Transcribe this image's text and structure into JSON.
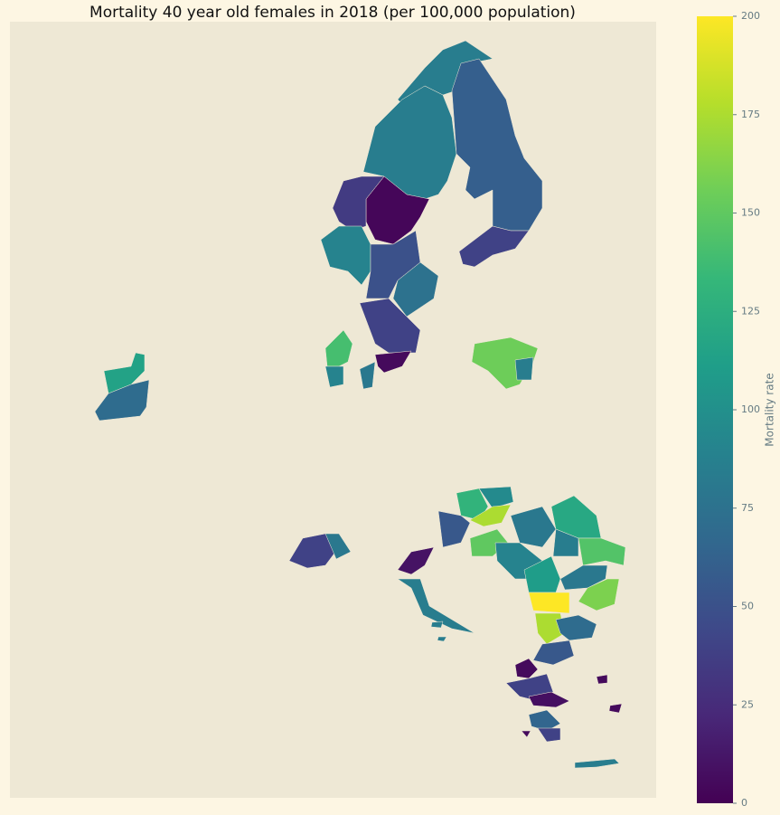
{
  "chart_data": {
    "type": "choropleth",
    "title": "Mortality 40 year old females in 2018 (per 100,000 population)",
    "colorbar_label": "Mortality rate",
    "colormap": "viridis",
    "clim": [
      0,
      200
    ],
    "cticks": [
      0,
      25,
      50,
      75,
      100,
      125,
      150,
      175,
      200
    ],
    "values": [
      85,
      85,
      60,
      40,
      3,
      35,
      90,
      50,
      75,
      40,
      5,
      140,
      90,
      80,
      155,
      85,
      115,
      70,
      40,
      80,
      10,
      85,
      130,
      95,
      175,
      55,
      150,
      90,
      80,
      120,
      85,
      145,
      110,
      80,
      160,
      200,
      175,
      70,
      55,
      5,
      40,
      8,
      65,
      40,
      85,
      5,
      5,
      5,
      85,
      85
    ]
  }
}
